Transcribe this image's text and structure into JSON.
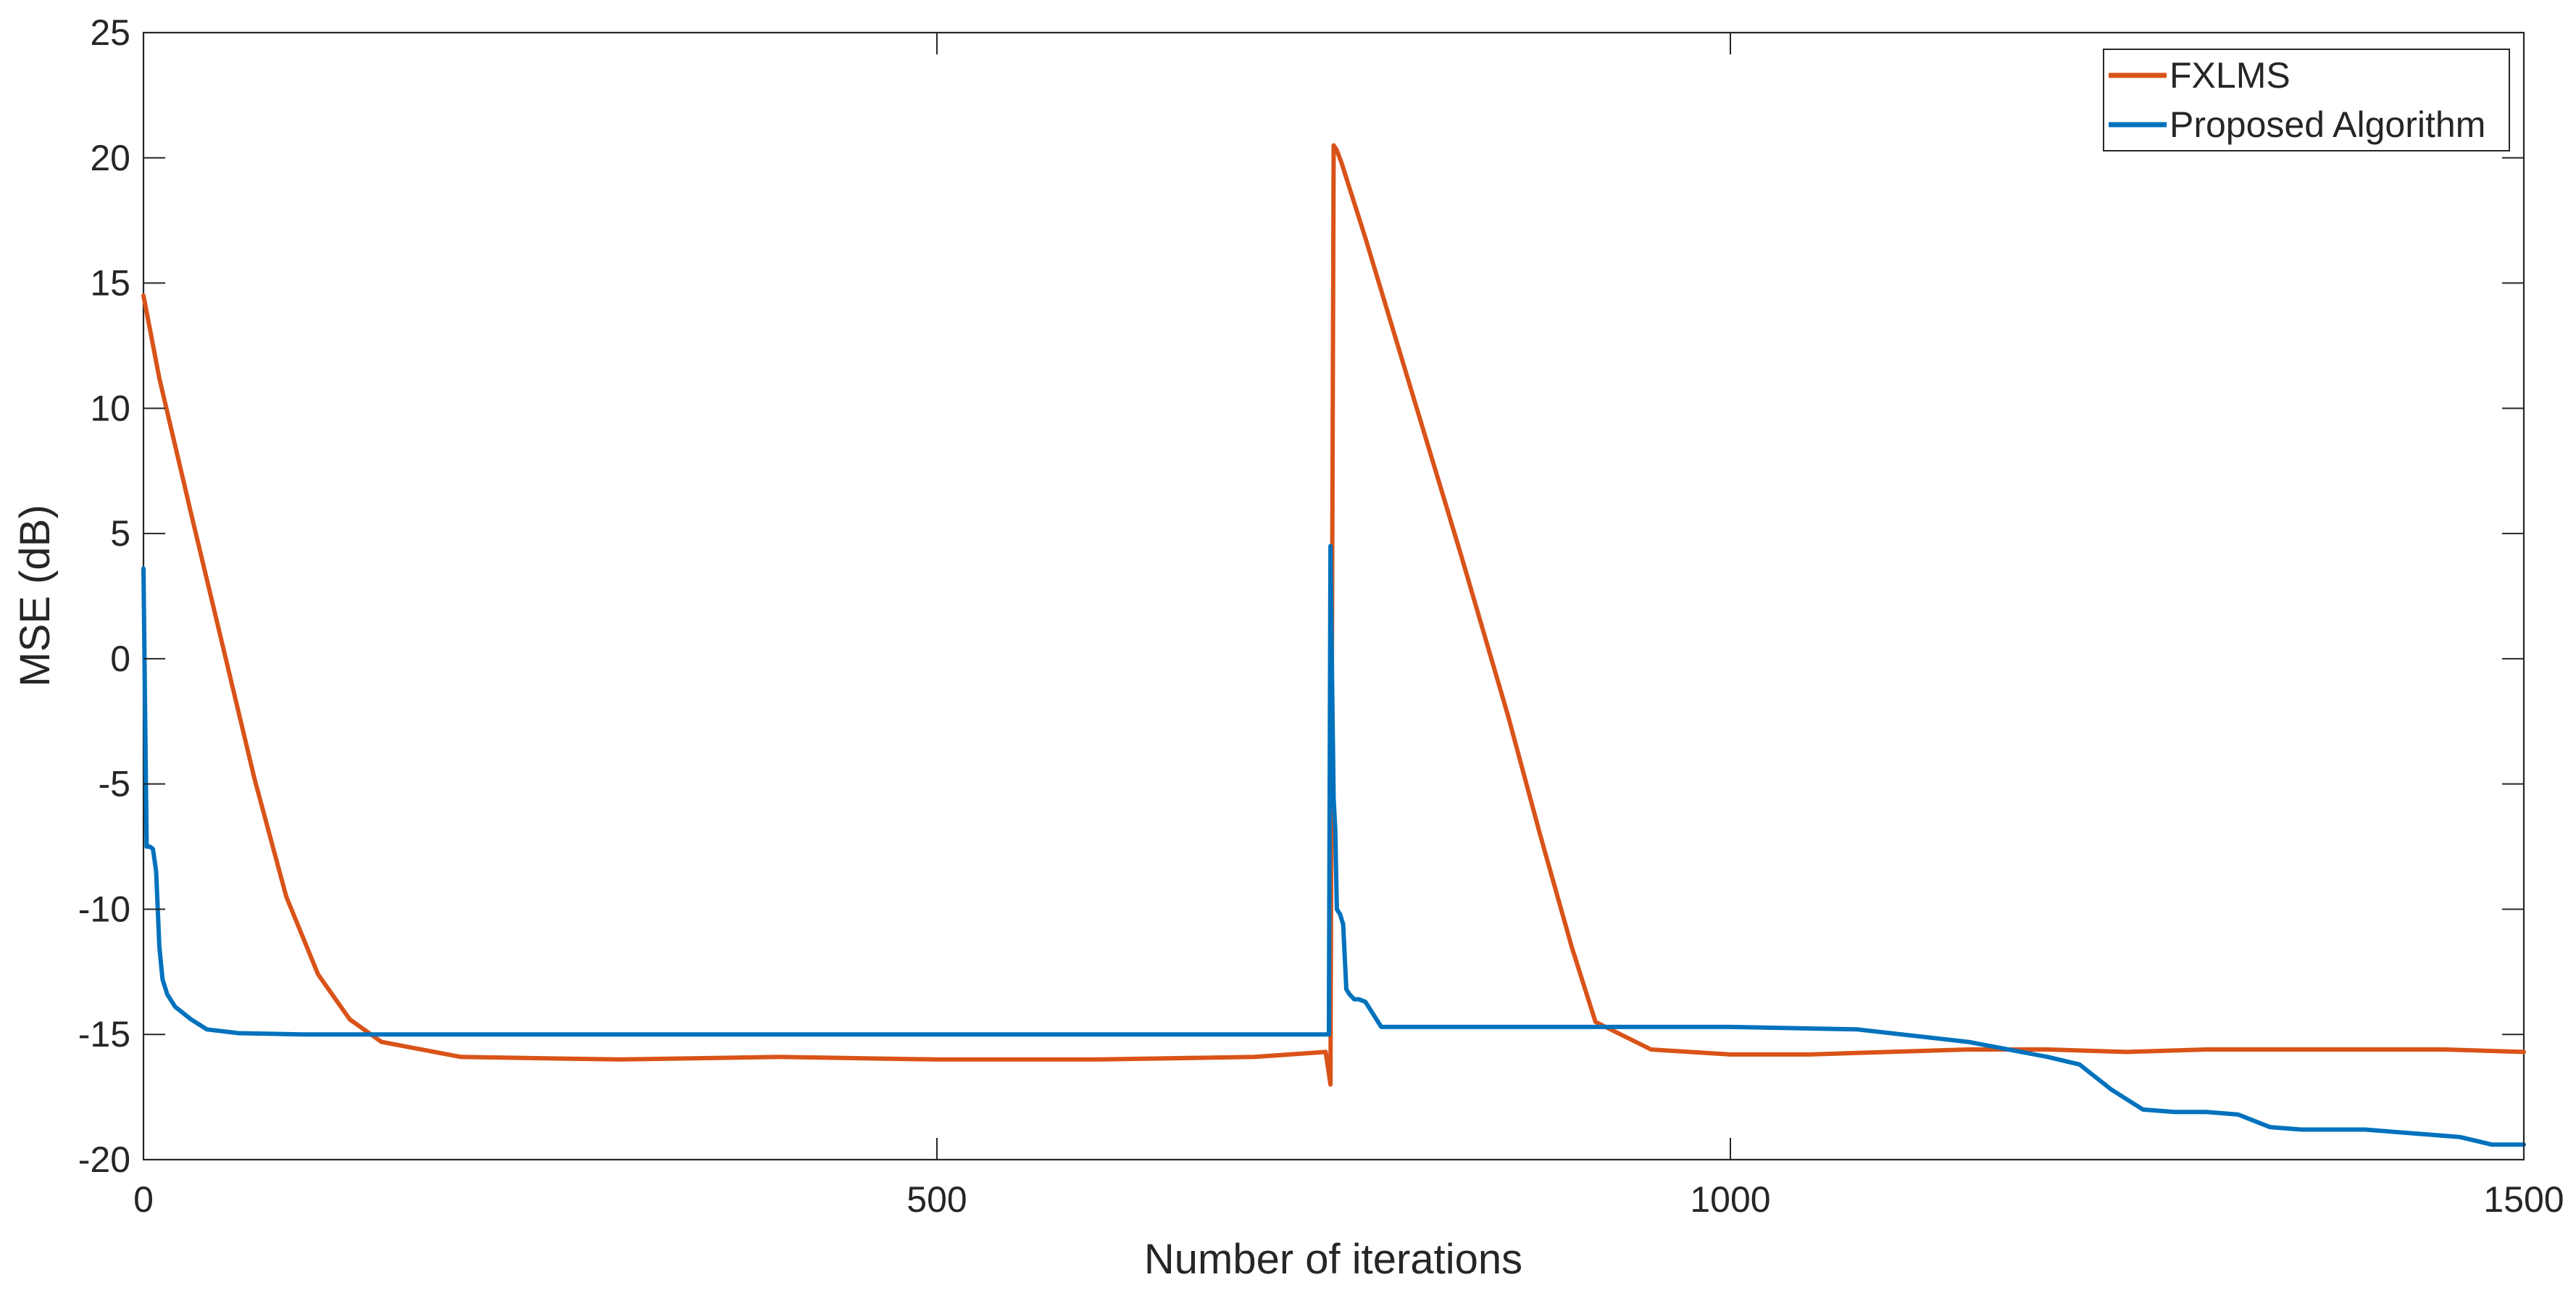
{
  "chart_data": {
    "type": "line",
    "title": "",
    "xlabel": "Number of iterations",
    "ylabel": "MSE (dB)",
    "xlim": [
      0,
      1500
    ],
    "ylim": [
      -20,
      25
    ],
    "xticks": [
      0,
      500,
      1000,
      1500
    ],
    "yticks": [
      -20,
      -15,
      -10,
      -5,
      0,
      5,
      10,
      15,
      20,
      25
    ],
    "xtick_labels": [
      "0",
      "500",
      "1000",
      "1500"
    ],
    "ytick_labels": [
      "-20",
      "-15",
      "-10",
      "-5",
      "0",
      "5",
      "10",
      "15",
      "20",
      "25"
    ],
    "grid": false,
    "legend_position": "top-right",
    "series": [
      {
        "name": "FXLMS",
        "color": "#D95319",
        "x": [
          0,
          10,
          30,
          50,
          70,
          90,
          110,
          130,
          150,
          200,
          300,
          400,
          500,
          600,
          700,
          745,
          748,
          750,
          752,
          755,
          770,
          800,
          830,
          860,
          880,
          900,
          915,
          950,
          1000,
          1050,
          1100,
          1150,
          1200,
          1250,
          1300,
          1350,
          1400,
          1450,
          1500
        ],
        "y": [
          14.5,
          11.2,
          5.8,
          0.5,
          -4.8,
          -9.5,
          -12.6,
          -14.4,
          -15.3,
          -15.9,
          -16.0,
          -15.9,
          -16.0,
          -16.0,
          -15.9,
          -15.7,
          -17.0,
          20.5,
          20.3,
          19.8,
          16.8,
          10.5,
          4.2,
          -2.3,
          -7.0,
          -11.5,
          -14.5,
          -15.6,
          -15.8,
          -15.8,
          -15.7,
          -15.6,
          -15.6,
          -15.7,
          -15.6,
          -15.6,
          -15.6,
          -15.6,
          -15.7
        ]
      },
      {
        "name": "Proposed Algorithm",
        "color": "#0072BD",
        "x": [
          0,
          2,
          4,
          6,
          8,
          10,
          12,
          15,
          20,
          30,
          40,
          60,
          100,
          200,
          400,
          600,
          745,
          747,
          748,
          749,
          750,
          751,
          752,
          754,
          756,
          758,
          760,
          763,
          766,
          770,
          775,
          780,
          800,
          900,
          1000,
          1080,
          1150,
          1200,
          1220,
          1240,
          1260,
          1280,
          1300,
          1320,
          1340,
          1360,
          1380,
          1400,
          1420,
          1440,
          1460,
          1480,
          1500
        ],
        "y": [
          3.6,
          -7.5,
          -7.5,
          -7.6,
          -8.5,
          -11.5,
          -12.8,
          -13.4,
          -13.9,
          -14.4,
          -14.8,
          -14.95,
          -15.0,
          -15.0,
          -15.0,
          -15.0,
          -15.0,
          -15.0,
          4.5,
          -0.8,
          -5.6,
          -6.8,
          -10.0,
          -10.2,
          -10.6,
          -13.2,
          -13.4,
          -13.6,
          -13.6,
          -13.7,
          -14.2,
          -14.7,
          -14.7,
          -14.7,
          -14.7,
          -14.8,
          -15.3,
          -15.9,
          -16.2,
          -17.2,
          -18.0,
          -18.1,
          -18.1,
          -18.2,
          -18.7,
          -18.8,
          -18.8,
          -18.8,
          -18.9,
          -19.0,
          -19.1,
          -19.4,
          -19.4
        ]
      }
    ]
  }
}
